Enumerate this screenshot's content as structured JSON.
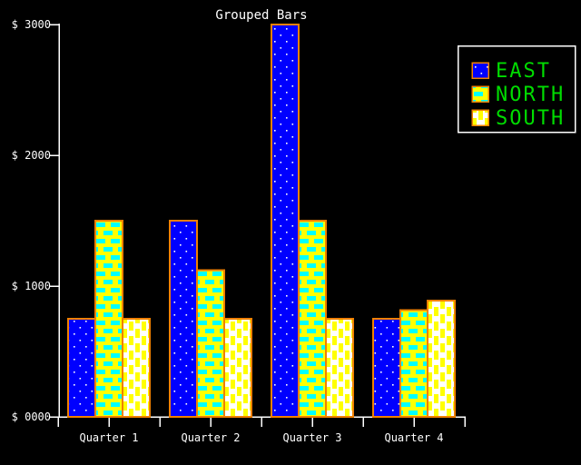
{
  "title": "Grouped Bars",
  "chart_data": {
    "type": "bar",
    "title": "Grouped Bars",
    "categories": [
      "Quarter 1",
      "Quarter 2",
      "Quarter 3",
      "Quarter 4"
    ],
    "series": [
      {
        "name": "EAST",
        "pattern": "white-dots-on-blue",
        "values": [
          750,
          1500,
          3000,
          750
        ]
      },
      {
        "name": "NORTH",
        "pattern": "cyan-bricks-on-yellow",
        "values": [
          1500,
          1120,
          1500,
          815
        ]
      },
      {
        "name": "SOUTH",
        "pattern": "yellow-dashes-on-white",
        "values": [
          750,
          750,
          750,
          890
        ]
      }
    ],
    "ylabel": "$",
    "ylim": [
      0,
      3000
    ],
    "y_tick_step": 1000,
    "grid": false,
    "legend_position": "top-right"
  },
  "y_axis": {
    "tick_labels": [
      "$ 3000",
      "$ 2000",
      "$ 1000",
      "$ 0000"
    ]
  },
  "colors": {
    "background": "#000000",
    "axis": "#ffffff",
    "title_text": "#ffffff",
    "bar_border": "#f08000",
    "east_bg": "#0000ff",
    "east_dot": "#ffffff",
    "north_bg": "#ffff00",
    "north_dash": "#00ffff",
    "south_bg": "#ffffff",
    "south_dash": "#ffff00",
    "legend_text": "#00dd00",
    "legend_border": "#ffffff"
  }
}
